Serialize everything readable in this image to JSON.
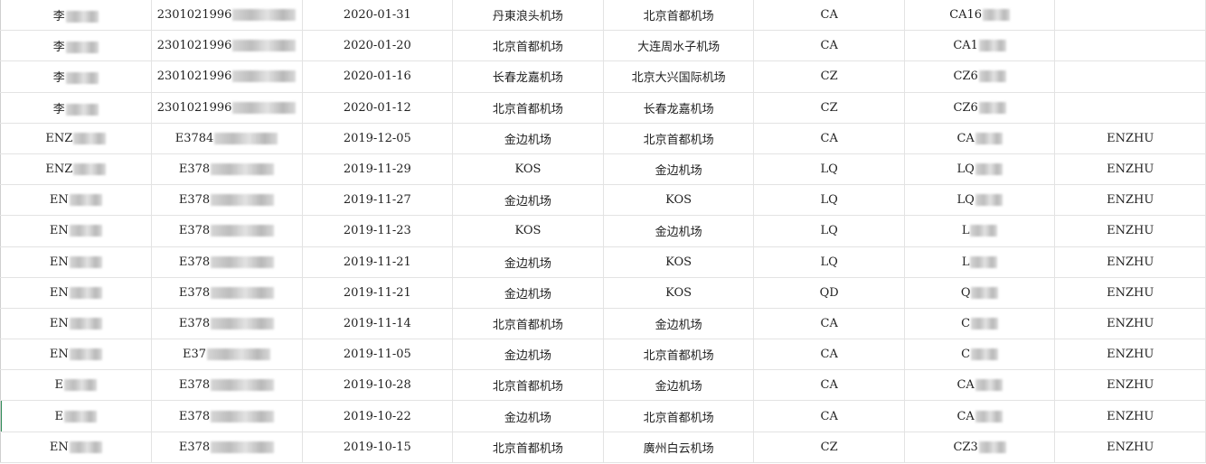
{
  "rows": [
    [
      "李",
      "2301021996",
      "2020-01-31",
      "丹東浪头机场",
      "北京首都机场",
      "CA",
      "CA16",
      ""
    ],
    [
      "李",
      "2301021996",
      "2020-01-20",
      "北京首都机场",
      "大连周水子机场",
      "CA",
      "CA1",
      ""
    ],
    [
      "李",
      "2301021996",
      "2020-01-16",
      "长春龙嘉机场",
      "北京大兴国际机场",
      "CZ",
      "CZ6",
      ""
    ],
    [
      "李",
      "2301021996",
      "2020-01-12",
      "北京首都机场",
      "长春龙嘉机场",
      "CZ",
      "CZ6",
      ""
    ],
    [
      "ENZ",
      "E3784",
      "2019-12-05",
      "金边机场",
      "北京首都机场",
      "CA",
      "CA",
      "ENZHU"
    ],
    [
      "ENZ",
      "E378",
      "2019-11-29",
      "KOS",
      "金边机场",
      "LQ",
      "LQ",
      "ENZHU"
    ],
    [
      "EN",
      "E378",
      "2019-11-27",
      "金边机场",
      "KOS",
      "LQ",
      "LQ",
      "ENZHU"
    ],
    [
      "EN",
      "E378",
      "2019-11-23",
      "KOS",
      "金边机场",
      "LQ",
      "L",
      "ENZHU"
    ],
    [
      "EN",
      "E378",
      "2019-11-21",
      "金边机场",
      "KOS",
      "LQ",
      "L",
      "ENZHU"
    ],
    [
      "EN",
      "E378",
      "2019-11-21",
      "金边机场",
      "KOS",
      "QD",
      "Q",
      "ENZHU"
    ],
    [
      "EN",
      "E378",
      "2019-11-14",
      "北京首都机场",
      "金边机场",
      "CA",
      "C",
      "ENZHU"
    ],
    [
      "EN",
      "E37",
      "2019-11-05",
      "金边机场",
      "北京首都机场",
      "CA",
      "C",
      "ENZHU"
    ],
    [
      "E",
      "E378",
      "2019-10-28",
      "北京首都机场",
      "金边机场",
      "CA",
      "CA",
      "ENZHU"
    ],
    [
      "E",
      "E378",
      "2019-10-22",
      "金边机场",
      "北京首都机场",
      "CA",
      "CA",
      "ENZHU"
    ],
    [
      "EN",
      "E378",
      "2019-10-15",
      "北京首都机场",
      "廣州白云机场",
      "CZ",
      "CZ3",
      "ENZHU"
    ]
  ]
}
